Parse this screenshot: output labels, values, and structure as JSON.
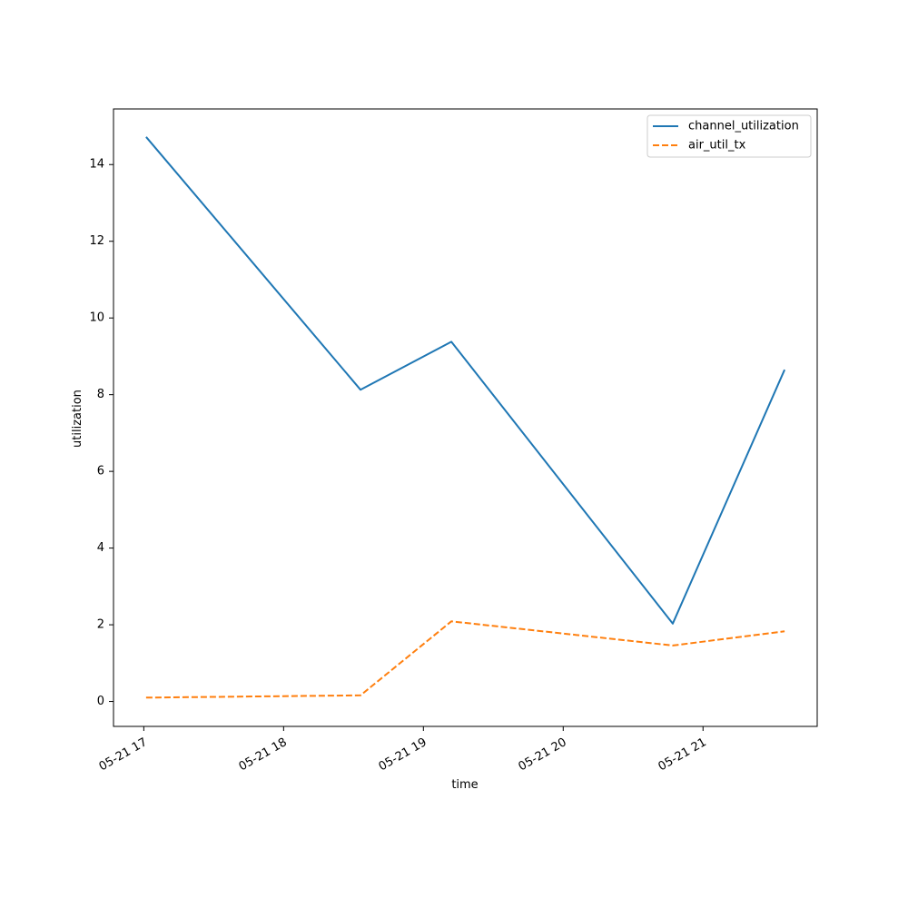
{
  "chart_data": {
    "type": "line",
    "title": "",
    "xlabel": "time",
    "ylabel": "utilization",
    "x_type": "datetime",
    "xlim": [
      "2024-05-21 16:47",
      "2024-05-21 21:49"
    ],
    "ylim": [
      -0.65,
      15.45
    ],
    "x_ticks": [
      {
        "value": "2024-05-21 17:00",
        "label": "05-21 17"
      },
      {
        "value": "2024-05-21 18:00",
        "label": "05-21 18"
      },
      {
        "value": "2024-05-21 19:00",
        "label": "05-21 19"
      },
      {
        "value": "2024-05-21 20:00",
        "label": "05-21 20"
      },
      {
        "value": "2024-05-21 21:00",
        "label": "05-21 21"
      }
    ],
    "y_ticks": [
      {
        "value": 0,
        "label": "0"
      },
      {
        "value": 2,
        "label": "2"
      },
      {
        "value": 4,
        "label": "4"
      },
      {
        "value": 6,
        "label": "6"
      },
      {
        "value": 8,
        "label": "8"
      },
      {
        "value": 10,
        "label": "10"
      },
      {
        "value": 12,
        "label": "12"
      },
      {
        "value": 14,
        "label": "14"
      }
    ],
    "grid": false,
    "legend_position": "top-right",
    "series": [
      {
        "name": "channel_utilization",
        "color": "#1f77b4",
        "dash": "solid",
        "points": [
          {
            "x": "2024-05-21 17:01",
            "y": 14.72
          },
          {
            "x": "2024-05-21 18:33",
            "y": 8.13
          },
          {
            "x": "2024-05-21 19:12",
            "y": 9.38
          },
          {
            "x": "2024-05-21 20:47",
            "y": 2.03
          },
          {
            "x": "2024-05-21 21:35",
            "y": 8.65
          }
        ]
      },
      {
        "name": "air_util_tx",
        "color": "#ff7f0e",
        "dash": "dashed",
        "points": [
          {
            "x": "2024-05-21 17:01",
            "y": 0.1
          },
          {
            "x": "2024-05-21 18:33",
            "y": 0.16
          },
          {
            "x": "2024-05-21 19:12",
            "y": 2.09
          },
          {
            "x": "2024-05-21 20:47",
            "y": 1.46
          },
          {
            "x": "2024-05-21 21:35",
            "y": 1.83
          }
        ]
      }
    ]
  }
}
